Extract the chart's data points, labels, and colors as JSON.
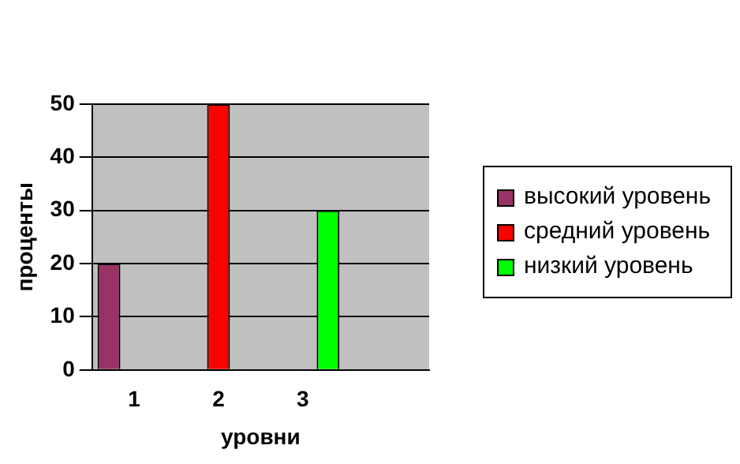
{
  "chart_data": {
    "type": "bar",
    "xlabel": "уровни",
    "ylabel": "проценты",
    "categories": [
      "1",
      "2",
      "3",
      null
    ],
    "series": [
      {
        "name": "высокий уровень",
        "color": "#993366",
        "values": [
          20,
          null,
          null,
          null
        ]
      },
      {
        "name": "средний уровень",
        "color": "#ff0000",
        "values": [
          null,
          50,
          null,
          null
        ]
      },
      {
        "name": "низкий уровень",
        "color": "#00ff00",
        "values": [
          null,
          null,
          30,
          null
        ]
      }
    ],
    "ylim": [
      0,
      50
    ],
    "yticks": [
      0,
      10,
      20,
      30,
      40,
      50
    ],
    "grid": "y",
    "legend": "right"
  }
}
